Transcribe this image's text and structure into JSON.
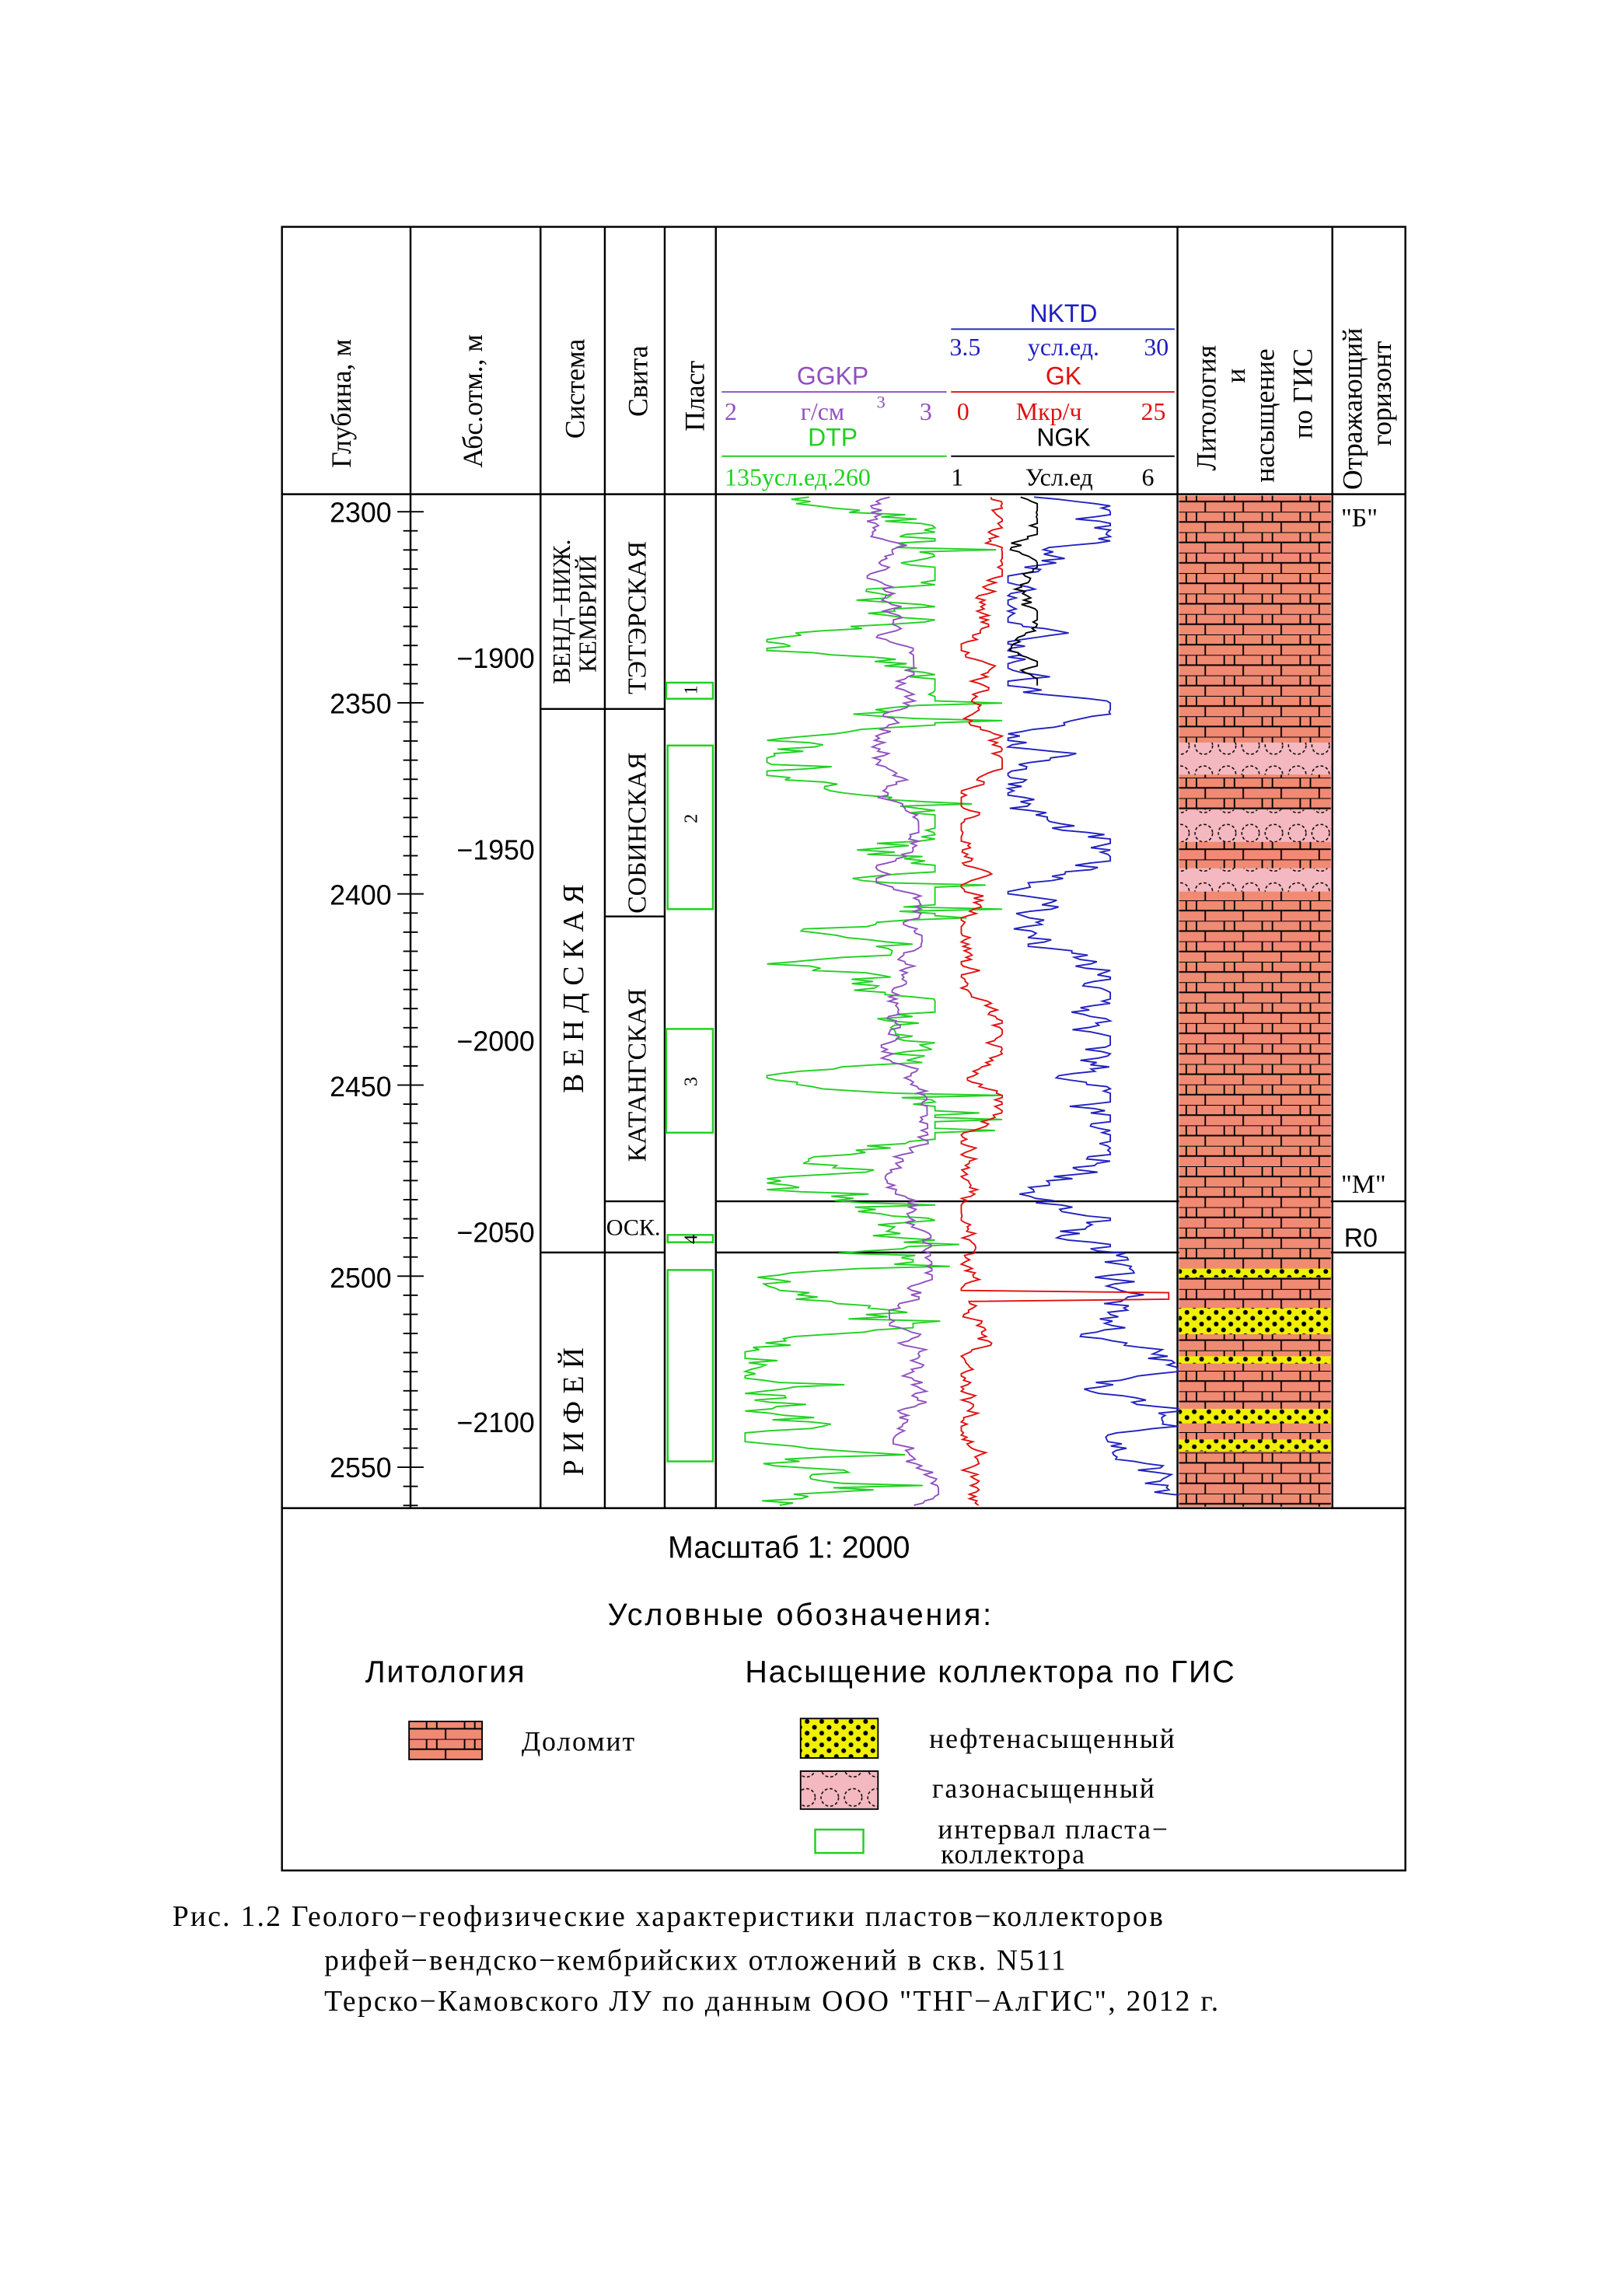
{
  "header": {
    "depth_col": "Глубина, м",
    "abs_col": "Абс.отм., м",
    "system_col": "Система",
    "suite_col": "Свита",
    "layer_col": "Пласт",
    "lith_col": [
      "Литология",
      "и",
      "насыщение",
      "по ГИС"
    ],
    "horizon_col": [
      "Отражающий",
      "горизонт"
    ]
  },
  "curves": {
    "nktd": {
      "name": "NKTD",
      "min": "3.5",
      "unit": "усл.ед.",
      "max": "30",
      "color": "#2020c0"
    },
    "ggkp": {
      "name": "GGKP",
      "min": "2",
      "unit": "г/см",
      "unit_sup": "3",
      "max": "3",
      "color": "#9050c0"
    },
    "gk": {
      "name": "GK",
      "min": "0",
      "unit": "Мкр/ч",
      "max": "25",
      "color": "#e01010"
    },
    "dtp": {
      "name": "DTP",
      "min": "135",
      "unit": "усл.ед.",
      "max": "260",
      "color": "#20d020"
    },
    "ngk": {
      "name": "NGK",
      "min": "1",
      "unit": "Усл.ед",
      "max": "6",
      "color": "#000000"
    }
  },
  "depth_ticks": [
    "2300",
    "2350",
    "2400",
    "2450",
    "2500",
    "2550"
  ],
  "abs_ticks": [
    "−1900",
    "−1950",
    "−2000",
    "−2050",
    "−2100"
  ],
  "systems": [
    "ВЕНД−НИЖ.",
    "КЕМБРИЙ",
    "В Е Н Д С К А Я",
    "Р И Ф Е Й"
  ],
  "suites": [
    "ТЭТЭРСКАЯ",
    "СОБИНСКАЯ",
    "КАТАНГСКАЯ",
    "ОСК."
  ],
  "layers": [
    "1",
    "2",
    "3",
    "4"
  ],
  "horizons": [
    "\"Б\"",
    "\"М\"",
    "R0"
  ],
  "scale": "Масштаб 1: 2000",
  "legend": {
    "title": "Условные обозначения:",
    "lithology_title": "Литология",
    "saturation_title": "Насыщение коллектора по ГИС",
    "dolomite": "Доломит",
    "oil": "нефтенасыщенный",
    "gas": "газонасыщенный",
    "interval": [
      "интервал пласта−",
      "коллектора"
    ]
  },
  "caption": [
    "Рис. 1.2 Геолого−геофизические характеристики пластов−коллекторов",
    "рифей−вендско−кембрийских отложений в скв.    N511",
    "Терско−Камовского ЛУ по данным ООО \"ТНГ−АлГИС\", 2012 г."
  ],
  "colors": {
    "dolomite": "#f08a72",
    "gas": "#f4b8c0",
    "oil": "#f0f000",
    "interval": "#20d020"
  }
}
